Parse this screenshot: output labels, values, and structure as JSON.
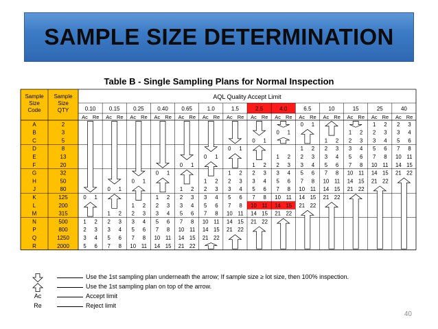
{
  "slide": {
    "title": "SAMPLE SIZE DETERMINATION",
    "page_number": "40"
  },
  "table": {
    "title": "Table B - Single Sampling Plans for Normal Inspection",
    "header": {
      "col1_line1": "Sample",
      "col1_line2": "Size",
      "col1_line3": "Code",
      "col2_line1": "Sample",
      "col2_line2": "Size",
      "col2_line3": "QTY",
      "aql_title": "AQL Quality Accept Limit",
      "ac": "Ac",
      "re": "Re"
    },
    "aql": [
      "0.10",
      "0.15",
      "0.25",
      "0.40",
      "0.65",
      "1.0",
      "1.5",
      "2.5",
      "4.0",
      "6.5",
      "10",
      "15",
      "25",
      "40"
    ],
    "highlight_aql": [
      7,
      8
    ],
    "highlight_color": "#ff1a1a",
    "header_color": "#ffc000",
    "rows": [
      {
        "code": "A",
        "qty": "2"
      },
      {
        "code": "B",
        "qty": "3"
      },
      {
        "code": "C",
        "qty": "5"
      },
      {
        "code": "D",
        "qty": "8"
      },
      {
        "code": "E",
        "qty": "13"
      },
      {
        "code": "F",
        "qty": "20"
      },
      {
        "code": "G",
        "qty": "32"
      },
      {
        "code": "H",
        "qty": "50"
      },
      {
        "code": "J",
        "qty": "80"
      },
      {
        "code": "K",
        "qty": "125"
      },
      {
        "code": "L",
        "qty": "200"
      },
      {
        "code": "M",
        "qty": "315"
      },
      {
        "code": "N",
        "qty": "500"
      },
      {
        "code": "P",
        "qty": "800"
      },
      {
        "code": "Q",
        "qty": "1250"
      },
      {
        "code": "R",
        "qty": "2000"
      }
    ],
    "cells": [
      {
        "r": 0,
        "c": 9,
        "v": "0 1"
      },
      {
        "r": 0,
        "c": 12,
        "v": "1 2"
      },
      {
        "r": 0,
        "c": 13,
        "v": "2 3"
      },
      {
        "r": 1,
        "c": 8,
        "v": "0 1"
      },
      {
        "r": 1,
        "c": 11,
        "v": "1 2"
      },
      {
        "r": 1,
        "c": 12,
        "v": "2 3"
      },
      {
        "r": 1,
        "c": 13,
        "v": "3 4"
      },
      {
        "r": 2,
        "c": 7,
        "v": "0 1"
      },
      {
        "r": 2,
        "c": 10,
        "v": "1 2"
      },
      {
        "r": 2,
        "c": 11,
        "v": "2 3"
      },
      {
        "r": 2,
        "c": 12,
        "v": "3 4"
      },
      {
        "r": 2,
        "c": 13,
        "v": "5 6"
      },
      {
        "r": 3,
        "c": 6,
        "v": "0 1"
      },
      {
        "r": 3,
        "c": 9,
        "v": "1 2"
      },
      {
        "r": 3,
        "c": 10,
        "v": "2 3"
      },
      {
        "r": 3,
        "c": 11,
        "v": "3 4"
      },
      {
        "r": 3,
        "c": 12,
        "v": "5 6"
      },
      {
        "r": 3,
        "c": 13,
        "v": "7 8"
      },
      {
        "r": 4,
        "c": 5,
        "v": "0 1"
      },
      {
        "r": 4,
        "c": 8,
        "v": "1 2"
      },
      {
        "r": 4,
        "c": 9,
        "v": "2 3"
      },
      {
        "r": 4,
        "c": 10,
        "v": "3 4"
      },
      {
        "r": 4,
        "c": 11,
        "v": "5 6"
      },
      {
        "r": 4,
        "c": 12,
        "v": "7 8"
      },
      {
        "r": 4,
        "c": 13,
        "v": "10 11"
      },
      {
        "r": 5,
        "c": 4,
        "v": "0 1"
      },
      {
        "r": 5,
        "c": 7,
        "v": "1 2"
      },
      {
        "r": 5,
        "c": 8,
        "v": "2 3"
      },
      {
        "r": 5,
        "c": 9,
        "v": "3 4"
      },
      {
        "r": 5,
        "c": 10,
        "v": "5 6"
      },
      {
        "r": 5,
        "c": 11,
        "v": "7 8"
      },
      {
        "r": 5,
        "c": 12,
        "v": "10 11"
      },
      {
        "r": 5,
        "c": 13,
        "v": "14 15"
      },
      {
        "r": 6,
        "c": 3,
        "v": "0 1"
      },
      {
        "r": 6,
        "c": 6,
        "v": "1 2"
      },
      {
        "r": 6,
        "c": 7,
        "v": "2 3"
      },
      {
        "r": 6,
        "c": 8,
        "v": "3 4"
      },
      {
        "r": 6,
        "c": 9,
        "v": "5 6"
      },
      {
        "r": 6,
        "c": 10,
        "v": "7 8"
      },
      {
        "r": 6,
        "c": 11,
        "v": "10 11"
      },
      {
        "r": 6,
        "c": 12,
        "v": "14 15"
      },
      {
        "r": 6,
        "c": 13,
        "v": "21 22"
      },
      {
        "r": 7,
        "c": 2,
        "v": "0 1"
      },
      {
        "r": 7,
        "c": 5,
        "v": "1 2"
      },
      {
        "r": 7,
        "c": 6,
        "v": "2 3"
      },
      {
        "r": 7,
        "c": 7,
        "v": "3 4"
      },
      {
        "r": 7,
        "c": 8,
        "v": "5 6"
      },
      {
        "r": 7,
        "c": 9,
        "v": "7 8"
      },
      {
        "r": 7,
        "c": 10,
        "v": "10 11"
      },
      {
        "r": 7,
        "c": 11,
        "v": "14 15"
      },
      {
        "r": 7,
        "c": 12,
        "v": "21 22"
      },
      {
        "r": 8,
        "c": 1,
        "v": "0 1"
      },
      {
        "r": 8,
        "c": 4,
        "v": "1 2"
      },
      {
        "r": 8,
        "c": 5,
        "v": "2 3"
      },
      {
        "r": 8,
        "c": 6,
        "v": "3 4"
      },
      {
        "r": 8,
        "c": 7,
        "v": "5 6"
      },
      {
        "r": 8,
        "c": 8,
        "v": "7 8"
      },
      {
        "r": 8,
        "c": 9,
        "v": "10 11"
      },
      {
        "r": 8,
        "c": 10,
        "v": "14 15"
      },
      {
        "r": 8,
        "c": 11,
        "v": "21 22"
      },
      {
        "r": 9,
        "c": 0,
        "v": "0 1"
      },
      {
        "r": 9,
        "c": 3,
        "v": "1 2"
      },
      {
        "r": 9,
        "c": 4,
        "v": "2 3"
      },
      {
        "r": 9,
        "c": 5,
        "v": "3 4"
      },
      {
        "r": 9,
        "c": 6,
        "v": "5 6"
      },
      {
        "r": 9,
        "c": 7,
        "v": "7 8"
      },
      {
        "r": 9,
        "c": 8,
        "v": "10 11"
      },
      {
        "r": 9,
        "c": 9,
        "v": "14 15"
      },
      {
        "r": 9,
        "c": 10,
        "v": "21 22"
      },
      {
        "r": 10,
        "c": 2,
        "v": "1 2"
      },
      {
        "r": 10,
        "c": 3,
        "v": "2 3"
      },
      {
        "r": 10,
        "c": 4,
        "v": "3 4"
      },
      {
        "r": 10,
        "c": 5,
        "v": "5 6"
      },
      {
        "r": 10,
        "c": 6,
        "v": "7 8"
      },
      {
        "r": 10,
        "c": 7,
        "v": "10 11",
        "red": true
      },
      {
        "r": 10,
        "c": 8,
        "v": "14 15",
        "red": true
      },
      {
        "r": 10,
        "c": 9,
        "v": "21 22"
      },
      {
        "r": 11,
        "c": 1,
        "v": "1 2"
      },
      {
        "r": 11,
        "c": 2,
        "v": "2 3"
      },
      {
        "r": 11,
        "c": 3,
        "v": "3 4"
      },
      {
        "r": 11,
        "c": 4,
        "v": "5 6"
      },
      {
        "r": 11,
        "c": 5,
        "v": "7 8"
      },
      {
        "r": 11,
        "c": 6,
        "v": "10 11"
      },
      {
        "r": 11,
        "c": 7,
        "v": "14 15"
      },
      {
        "r": 11,
        "c": 8,
        "v": "21 22"
      },
      {
        "r": 12,
        "c": 0,
        "v": "1 2"
      },
      {
        "r": 12,
        "c": 1,
        "v": "2 3"
      },
      {
        "r": 12,
        "c": 2,
        "v": "3 4"
      },
      {
        "r": 12,
        "c": 3,
        "v": "5 6"
      },
      {
        "r": 12,
        "c": 4,
        "v": "7 8"
      },
      {
        "r": 12,
        "c": 5,
        "v": "10 11"
      },
      {
        "r": 12,
        "c": 6,
        "v": "14 15"
      },
      {
        "r": 12,
        "c": 7,
        "v": "21 22"
      },
      {
        "r": 13,
        "c": 0,
        "v": "2 3"
      },
      {
        "r": 13,
        "c": 1,
        "v": "3 4"
      },
      {
        "r": 13,
        "c": 2,
        "v": "5 6"
      },
      {
        "r": 13,
        "c": 3,
        "v": "7 8"
      },
      {
        "r": 13,
        "c": 4,
        "v": "10 11"
      },
      {
        "r": 13,
        "c": 5,
        "v": "14 15"
      },
      {
        "r": 13,
        "c": 6,
        "v": "21 22"
      },
      {
        "r": 14,
        "c": 0,
        "v": "3 4"
      },
      {
        "r": 14,
        "c": 1,
        "v": "5 6"
      },
      {
        "r": 14,
        "c": 2,
        "v": "7 8"
      },
      {
        "r": 14,
        "c": 3,
        "v": "10 11"
      },
      {
        "r": 14,
        "c": 4,
        "v": "14 15"
      },
      {
        "r": 14,
        "c": 5,
        "v": "21 22"
      },
      {
        "r": 15,
        "c": 0,
        "v": "5 6"
      },
      {
        "r": 15,
        "c": 1,
        "v": "7 8"
      },
      {
        "r": 15,
        "c": 2,
        "v": "10 11"
      },
      {
        "r": 15,
        "c": 3,
        "v": "14 15"
      },
      {
        "r": 15,
        "c": 4,
        "v": "21 22"
      }
    ],
    "down_arrows": [
      {
        "c": 0,
        "r0": 0,
        "r1": 8
      },
      {
        "c": 1,
        "r0": 0,
        "r1": 7
      },
      {
        "c": 2,
        "r0": 0,
        "r1": 6
      },
      {
        "c": 3,
        "r0": 0,
        "r1": 5
      },
      {
        "c": 4,
        "r0": 0,
        "r1": 4
      },
      {
        "c": 5,
        "r0": 0,
        "r1": 3
      },
      {
        "c": 6,
        "r0": 0,
        "r1": 2
      },
      {
        "c": 7,
        "r0": 0,
        "r1": 1
      },
      {
        "c": 8,
        "r0": 0,
        "r1": 0
      },
      {
        "c": 11,
        "r0": 0,
        "r1": 0
      }
    ],
    "up_arrows": [
      {
        "c": 9,
        "r0": 1,
        "r1": 2
      },
      {
        "c": 10,
        "r0": 0,
        "r1": 1
      },
      {
        "c": 8,
        "r0": 2,
        "r1": 2
      },
      {
        "c": 7,
        "r0": 3,
        "r1": 4
      },
      {
        "c": 6,
        "r0": 4,
        "r1": 5
      },
      {
        "c": 5,
        "r0": 5,
        "r1": 6
      },
      {
        "c": 4,
        "r0": 6,
        "r1": 7
      },
      {
        "c": 3,
        "r0": 7,
        "r1": 8
      },
      {
        "c": 2,
        "r0": 8,
        "r1": 9
      },
      {
        "c": 1,
        "r0": 9,
        "r1": 10
      },
      {
        "c": 0,
        "r0": 10,
        "r1": 11
      },
      {
        "c": 13,
        "r0": 7,
        "r1": 15
      },
      {
        "c": 12,
        "r0": 8,
        "r1": 15
      },
      {
        "c": 11,
        "r0": 9,
        "r1": 15
      },
      {
        "c": 10,
        "r0": 10,
        "r1": 15
      },
      {
        "c": 9,
        "r0": 11,
        "r1": 15
      },
      {
        "c": 8,
        "r0": 12,
        "r1": 15
      },
      {
        "c": 7,
        "r0": 13,
        "r1": 15
      },
      {
        "c": 6,
        "r0": 14,
        "r1": 15
      },
      {
        "c": 5,
        "r0": 15,
        "r1": 15
      }
    ]
  },
  "legend": [
    {
      "symbol": "down-arrow",
      "label": "",
      "text": "Use the 1st sampling plan underneath the arrow; If sample size ≥ lot size, then 100% inspection."
    },
    {
      "symbol": "up-arrow",
      "label": "",
      "text": "Use the 1st sampling plan on top of the arrow."
    },
    {
      "symbol": "text",
      "label": "Ac",
      "text": "Accept limit"
    },
    {
      "symbol": "text",
      "label": "Re",
      "text": "Reject limit"
    }
  ]
}
